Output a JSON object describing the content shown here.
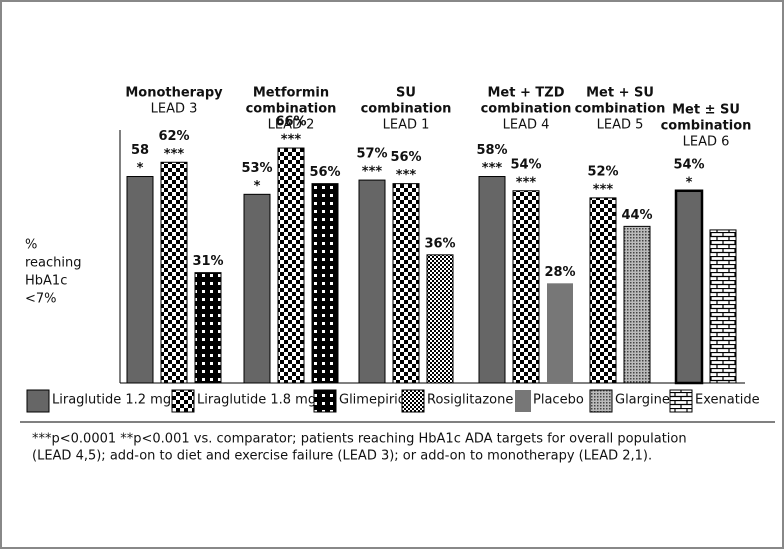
{
  "chart_data": {
    "type": "bar",
    "categories": [
      [
        "Monotherapy"
      ],
      [
        "Metformin",
        "combination"
      ],
      [
        "SU",
        "combination"
      ],
      [
        "Met + TZD",
        "combination"
      ],
      [
        "Met + SU",
        "combination"
      ],
      [
        "Met ± SU",
        "combination"
      ]
    ],
    "studies": [
      "LEAD 3",
      "LEAD 2",
      "LEAD 1",
      "LEAD 4",
      "LEAD 5",
      "LEAD 6"
    ],
    "y_label": [
      "%",
      "reaching",
      "HbA1c",
      "<7%"
    ],
    "series": [
      {
        "name": "Liraglutide 1.2 mg",
        "values": [
          58,
          53,
          57,
          58,
          null,
          54
        ],
        "value_labels": [
          "58",
          "53%",
          "57%",
          "58%",
          null,
          "54%"
        ],
        "significance": [
          "*",
          "*",
          "***",
          "***",
          null,
          "*"
        ]
      },
      {
        "name": "Liraglutide 1.8 mg",
        "values": [
          62,
          66,
          56,
          54,
          52,
          null
        ],
        "value_labels": [
          "62%",
          "66%",
          "56%",
          "54%",
          "52%",
          null
        ],
        "significance": [
          "***",
          "***",
          "***",
          "***",
          "***",
          null
        ]
      },
      {
        "name": "Glimepiride",
        "values": [
          31,
          56,
          null,
          null,
          null,
          null
        ],
        "value_labels": [
          "31%",
          "56%",
          null,
          null,
          null,
          null
        ]
      },
      {
        "name": "Rosiglitazone",
        "values": [
          null,
          null,
          36,
          null,
          null,
          null
        ],
        "value_labels": [
          null,
          null,
          "36%",
          null,
          null,
          null
        ]
      },
      {
        "name": "Placebo",
        "values": [
          null,
          null,
          null,
          28,
          null,
          null
        ],
        "value_labels": [
          null,
          null,
          null,
          "28%",
          null,
          null
        ]
      },
      {
        "name": "Glargine",
        "values": [
          null,
          null,
          null,
          null,
          44,
          null
        ],
        "value_labels": [
          null,
          null,
          null,
          null,
          "44%",
          null
        ]
      },
      {
        "name": "Exenatide",
        "values": [
          null,
          null,
          null,
          null,
          null,
          43
        ],
        "value_labels": [
          null,
          null,
          null,
          null,
          null,
          null
        ]
      }
    ],
    "footnote": [
      "***p<0.0001 **p<0.001 vs. comparator; patients reaching HbA1c ADA targets for overall population",
      "(LEAD 4,5); add-on to diet and exercise failure (LEAD 3); or add-on to monotherapy (LEAD 2,1)."
    ]
  }
}
